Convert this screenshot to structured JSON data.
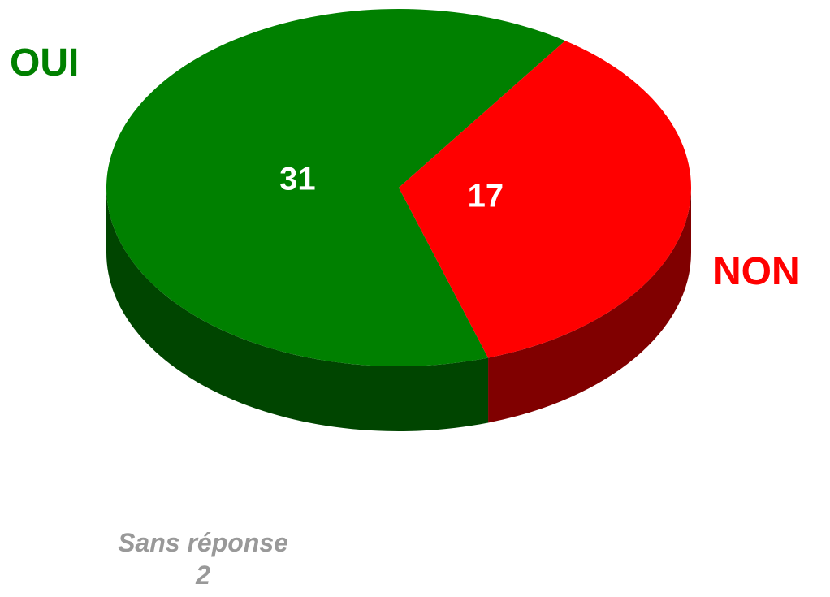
{
  "chart_data": {
    "type": "pie",
    "title": "",
    "categories": [
      "OUI",
      "NON"
    ],
    "values": [
      31,
      17
    ],
    "colors": {
      "OUI": {
        "top": "#008000",
        "side": "#004500"
      },
      "NON": {
        "top": "#ff0000",
        "side": "#800000"
      }
    },
    "label_colors": {
      "OUI": "#008000",
      "NON": "#ff0000"
    },
    "value_label_color": "#ffffff",
    "no_answer": {
      "label": "Sans réponse",
      "value": "2",
      "color": "#999999"
    },
    "style": "3d"
  }
}
